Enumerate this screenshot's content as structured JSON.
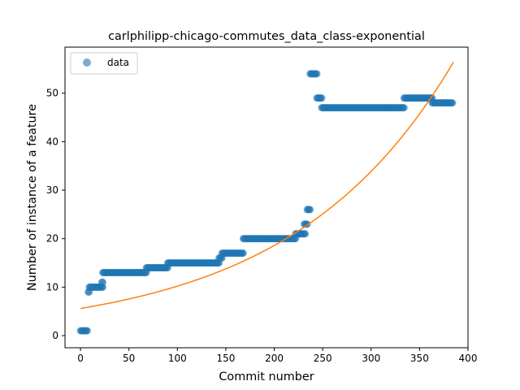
{
  "chart_data": {
    "type": "scatter",
    "title": "carlphilipp-chicago-commutes_data_class-exponential",
    "xlabel": "Commit number",
    "ylabel": "Number of instance of a feature",
    "xlim": [
      -16,
      400
    ],
    "ylim": [
      -2.5,
      59.5
    ],
    "xticks": [
      0,
      50,
      100,
      150,
      200,
      250,
      300,
      350,
      400
    ],
    "yticks": [
      0,
      10,
      20,
      30,
      40,
      50
    ],
    "grid": false,
    "legend": {
      "position": "top-left",
      "entries": [
        "data"
      ]
    },
    "colors": {
      "data": "#1f77b4",
      "fit": "#ff7f0e"
    },
    "series": [
      {
        "name": "data",
        "kind": "points",
        "segments": [
          {
            "x0": 0,
            "x1": 7,
            "y": 1
          },
          {
            "x0": 8,
            "x1": 9,
            "y": 9
          },
          {
            "x0": 9,
            "x1": 23,
            "y": 10
          },
          {
            "x0": 22,
            "x1": 23,
            "y": 11
          },
          {
            "x0": 23,
            "x1": 68,
            "y": 13
          },
          {
            "x0": 68,
            "x1": 90,
            "y": 14
          },
          {
            "x0": 90,
            "x1": 143,
            "y": 15
          },
          {
            "x0": 143,
            "x1": 146,
            "y": 16
          },
          {
            "x0": 146,
            "x1": 168,
            "y": 17
          },
          {
            "x0": 168,
            "x1": 222,
            "y": 20
          },
          {
            "x0": 222,
            "x1": 232,
            "y": 21
          },
          {
            "x0": 231,
            "x1": 234,
            "y": 23
          },
          {
            "x0": 234,
            "x1": 237,
            "y": 26
          },
          {
            "x0": 237,
            "x1": 244,
            "y": 54
          },
          {
            "x0": 244,
            "x1": 249,
            "y": 49
          },
          {
            "x0": 249,
            "x1": 334,
            "y": 47
          },
          {
            "x0": 334,
            "x1": 363,
            "y": 49
          },
          {
            "x0": 363,
            "x1": 384,
            "y": 48
          }
        ]
      },
      {
        "name": "",
        "kind": "line",
        "function": {
          "a": 5.6,
          "b": 0.006
        },
        "x_range": [
          0,
          385
        ]
      }
    ]
  }
}
